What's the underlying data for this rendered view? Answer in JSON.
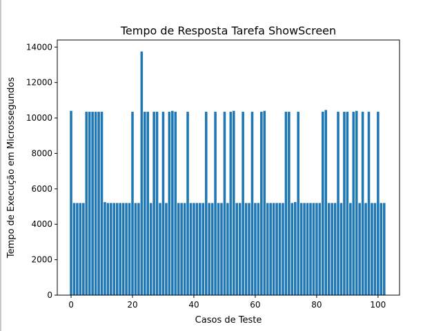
{
  "chart_data": {
    "type": "bar",
    "title": "Tempo de Resposta Tarefa ShowScreen",
    "xlabel": "Casos de Teste",
    "ylabel": "Tempo de Execução em Microssegundos",
    "xlim": [
      -4.5,
      107
    ],
    "ylim": [
      0,
      14400
    ],
    "x_ticks": [
      0,
      20,
      40,
      60,
      80,
      100
    ],
    "y_ticks": [
      0,
      2000,
      4000,
      6000,
      8000,
      10000,
      12000,
      14000
    ],
    "bar_color": "#1f77b4",
    "grid": false,
    "legend": "none",
    "x": [
      0,
      1,
      2,
      3,
      4,
      5,
      6,
      7,
      8,
      9,
      10,
      11,
      12,
      13,
      14,
      15,
      16,
      17,
      18,
      19,
      20,
      21,
      22,
      23,
      24,
      25,
      26,
      27,
      28,
      29,
      30,
      31,
      32,
      33,
      34,
      35,
      36,
      37,
      38,
      39,
      40,
      41,
      42,
      43,
      44,
      45,
      46,
      47,
      48,
      49,
      50,
      51,
      52,
      53,
      54,
      55,
      56,
      57,
      58,
      59,
      60,
      61,
      62,
      63,
      64,
      65,
      66,
      67,
      68,
      69,
      70,
      71,
      72,
      73,
      74,
      75,
      76,
      77,
      78,
      79,
      80,
      81,
      82,
      83,
      84,
      85,
      86,
      87,
      88,
      89,
      90,
      91,
      92,
      93,
      94,
      95,
      96,
      97,
      98,
      99,
      100,
      101,
      102
    ],
    "values": [
      10400,
      5200,
      5200,
      5200,
      5200,
      10350,
      10350,
      10350,
      10350,
      10350,
      10350,
      5250,
      5200,
      5200,
      5200,
      5200,
      5200,
      5200,
      5200,
      5200,
      10350,
      5200,
      5200,
      13750,
      10350,
      10350,
      5200,
      10350,
      10350,
      5200,
      10350,
      5200,
      10350,
      10400,
      10350,
      5200,
      5200,
      5200,
      10350,
      5200,
      5200,
      5200,
      5200,
      5200,
      10350,
      5200,
      5200,
      10350,
      5200,
      5200,
      10350,
      5200,
      10350,
      10400,
      5200,
      5200,
      10350,
      5200,
      5200,
      10350,
      5200,
      5200,
      10350,
      10400,
      5200,
      5200,
      5200,
      5200,
      5200,
      5200,
      10350,
      10350,
      5200,
      5250,
      10350,
      5200,
      5200,
      5200,
      5200,
      5200,
      5200,
      5200,
      10350,
      10450,
      5200,
      5200,
      5200,
      10350,
      5200,
      10350,
      10350,
      5200,
      10350,
      10400,
      5200,
      10350,
      5200,
      10350,
      5200,
      5200,
      10350,
      5200,
      5200
    ]
  }
}
